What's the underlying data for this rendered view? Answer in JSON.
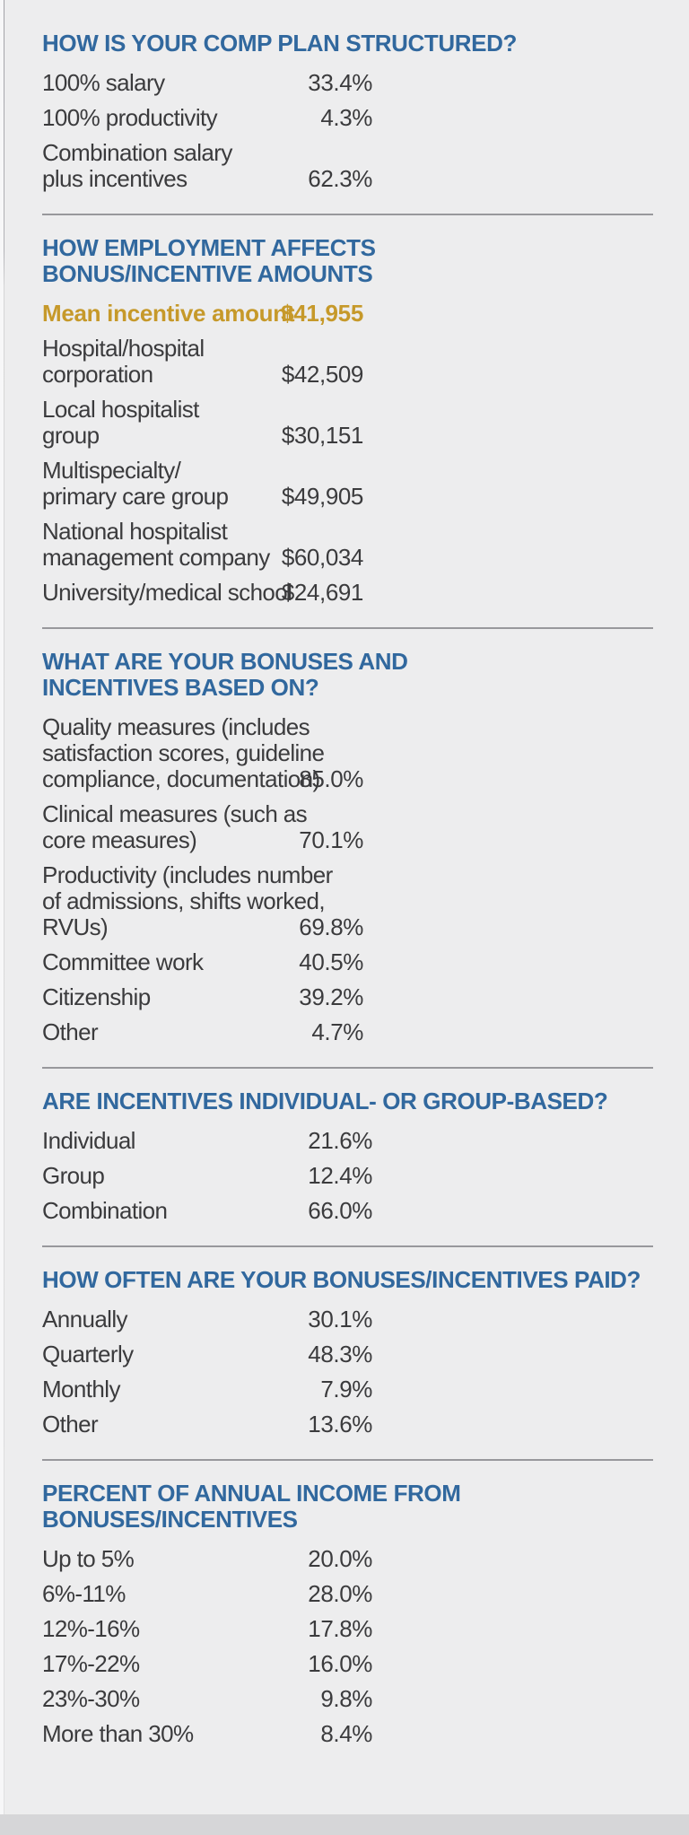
{
  "palette": {
    "background": "#ededee",
    "heading_blue": "#31689e",
    "highlight_gold": "#c6992a",
    "body_text": "#3b3b3d",
    "divider_gray": "#98989c"
  },
  "sections": [
    {
      "id": "comp-plan-structured",
      "heading": "HOW IS YOUR COMP PLAN STRUCTURED?",
      "rows": [
        {
          "label": "100% salary",
          "value": "33.4%"
        },
        {
          "label": "100% productivity",
          "value": "4.3%"
        },
        {
          "label": "Combination salary\nplus incentives",
          "value": "62.3%"
        }
      ]
    },
    {
      "id": "employment-effects",
      "heading": "HOW EMPLOYMENT AFFECTS\nBONUS/INCENTIVE AMOUNTS",
      "highlight": {
        "label": "Mean incentive amount",
        "value": "$41,955"
      },
      "rows": [
        {
          "label": "Hospital/hospital\ncorporation",
          "value": "$42,509"
        },
        {
          "label": "Local hospitalist\ngroup",
          "value": "$30,151"
        },
        {
          "label": "Multispecialty/\nprimary care group",
          "value": "$49,905"
        },
        {
          "label": "National hospitalist\nmanagement company",
          "value": "$60,034"
        },
        {
          "label": "University/medical school",
          "value": "$24,691"
        }
      ]
    },
    {
      "id": "bonuses-based-on",
      "heading": "WHAT ARE YOUR BONUSES AND\nINCENTIVES BASED ON?",
      "rows": [
        {
          "label": "Quality measures (includes\nsatisfaction scores, guideline\ncompliance, documentation)",
          "value": "85.0%"
        },
        {
          "label": "Clinical measures (such as\ncore measures)",
          "value": "70.1%"
        },
        {
          "label": "Productivity (includes number\nof admissions, shifts worked,\nRVUs)",
          "value": "69.8%"
        },
        {
          "label": "Committee work",
          "value": "40.5%"
        },
        {
          "label": "Citizenship",
          "value": "39.2%"
        },
        {
          "label": "Other",
          "value": "4.7%"
        }
      ]
    },
    {
      "id": "individual-or-group",
      "heading": "ARE INCENTIVES INDIVIDUAL- OR GROUP-BASED?",
      "rows": [
        {
          "label": "Individual",
          "value": "21.6%"
        },
        {
          "label": "Group",
          "value": "12.4%"
        },
        {
          "label": "Combination",
          "value": "66.0%"
        }
      ]
    },
    {
      "id": "payment-frequency",
      "heading": "HOW OFTEN ARE YOUR BONUSES/INCENTIVES PAID?",
      "rows": [
        {
          "label": "Annually",
          "value": "30.1%"
        },
        {
          "label": "Quarterly",
          "value": "48.3%"
        },
        {
          "label": "Monthly",
          "value": "7.9%"
        },
        {
          "label": "Other",
          "value": "13.6%"
        }
      ]
    },
    {
      "id": "percent-annual-income",
      "heading": "PERCENT OF ANNUAL INCOME FROM\nBONUSES/INCENTIVES",
      "rows": [
        {
          "label": "Up to 5%",
          "value": "20.0%"
        },
        {
          "label": "6%-11%",
          "value": "28.0%"
        },
        {
          "label": "12%-16%",
          "value": "17.8%"
        },
        {
          "label": "17%-22%",
          "value": "16.0%"
        },
        {
          "label": "23%-30%",
          "value": "9.8%"
        },
        {
          "label": "More than 30%",
          "value": "8.4%"
        }
      ]
    }
  ]
}
